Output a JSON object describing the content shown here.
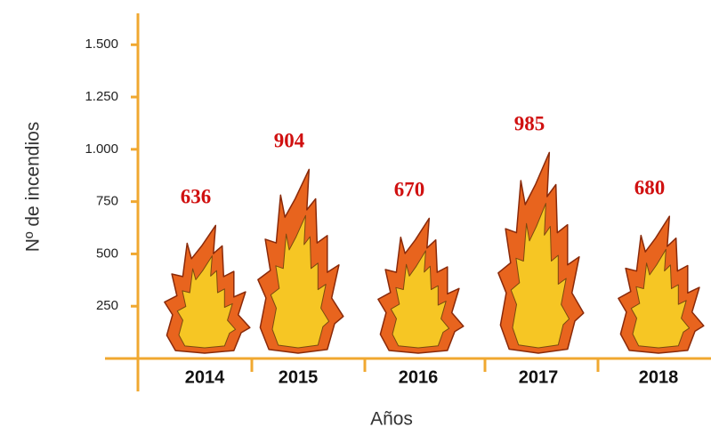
{
  "chart_data": {
    "type": "pictograph",
    "ylabel": "Nº de incendios",
    "xlabel": "Años",
    "categories": [
      "2014",
      "2015",
      "2016",
      "2017",
      "2018"
    ],
    "values": [
      636,
      904,
      670,
      985,
      680
    ],
    "ylim": [
      0,
      1650
    ],
    "yticks": [
      {
        "value": 250,
        "label": "250"
      },
      {
        "value": 500,
        "label": "500"
      },
      {
        "value": 750,
        "label": "750"
      },
      {
        "value": 1000,
        "label": "1.000"
      },
      {
        "value": 1250,
        "label": "1.250"
      },
      {
        "value": 1500,
        "label": "1.500"
      }
    ],
    "color": "#e8641e",
    "label_color": "#d01010",
    "axis_color": "#f0a830"
  }
}
